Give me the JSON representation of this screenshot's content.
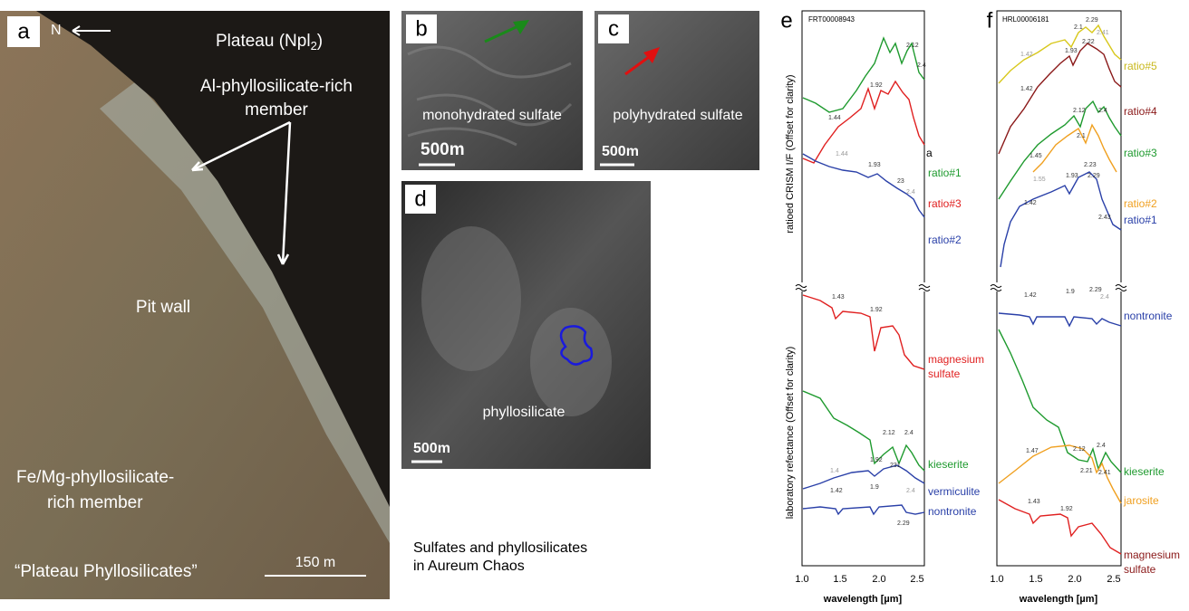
{
  "panel_a": {
    "label": "a",
    "north": "N",
    "plateau": "Plateau (Npl",
    "plateau_sub": "2",
    "plateau_end": ")",
    "al_member": [
      "Al-phyllosilicate-rich",
      "member"
    ],
    "pit_wall": "Pit wall",
    "fe_member": [
      "Fe/Mg-phyllosilicate-",
      "rich member"
    ],
    "plateau_phyllosilicates": "“Plateau Phyllosilicates”",
    "scale": "150 m"
  },
  "panel_b": {
    "label": "b",
    "caption": "monohydrated sulfate",
    "scale": "500m"
  },
  "panel_c": {
    "label": "c",
    "caption": "polyhydrated sulfate",
    "scale": "500m"
  },
  "panel_d": {
    "label": "d",
    "caption": "phyllosilicate",
    "scale": "500m"
  },
  "figure_caption": [
    "Sulfates and phyllosilicates",
    "in Aureum Chaos"
  ],
  "panel_e": {
    "label": "e",
    "observation": "FRT00008943",
    "y_label_top": "ratioed CRISM I/F (Offset for clarity)",
    "y_label_bottom": "laboratory refectance (Offset for clarity)",
    "x_label": "wavelength [µm]",
    "x_ticks": [
      "1.0",
      "1.5",
      "2.0",
      "2.5"
    ],
    "series_top": [
      "ratio#1",
      "ratio#3",
      "ratio#2"
    ],
    "stray": "a",
    "series_bottom": [
      "magnesium",
      "sulfate",
      "kieserite",
      "vermiculite",
      "nontronite"
    ],
    "bands": [
      "2.12",
      "2.4",
      "1.92",
      "1.44",
      "1.44",
      "1.93",
      "23",
      "2.4",
      "1.43",
      "1.92",
      "2.12",
      "2.4",
      "1.4",
      "1.92",
      "231",
      "1.42",
      "1.9",
      "2.4",
      "2.29"
    ]
  },
  "panel_f": {
    "label": "f",
    "observation": "HRL00006181",
    "x_label": "wavelength [µm]",
    "x_ticks": [
      "1.0",
      "1.5",
      "2.0",
      "2.5"
    ],
    "series_top": [
      "ratio#5",
      "ratio#4",
      "ratio#3",
      "ratio#2",
      "ratio#1"
    ],
    "series_bottom": [
      "nontronite",
      "kieserite",
      "jarosite",
      "magnesium",
      "sulfate"
    ],
    "bands": [
      "1.42",
      "2.1",
      "2.29",
      "2.41",
      "1.93",
      "2.22",
      "1.42",
      "2.12",
      "2.4",
      "1.45",
      "1.55",
      "2.1",
      "2.23",
      "1.42",
      "1.93",
      "2.29",
      "2.43",
      "1.42",
      "1.9",
      "2.29",
      "2.4",
      "2.12",
      "2.4",
      "1.47",
      "2.21",
      "2.41",
      "1.43",
      "1.92"
    ]
  }
}
